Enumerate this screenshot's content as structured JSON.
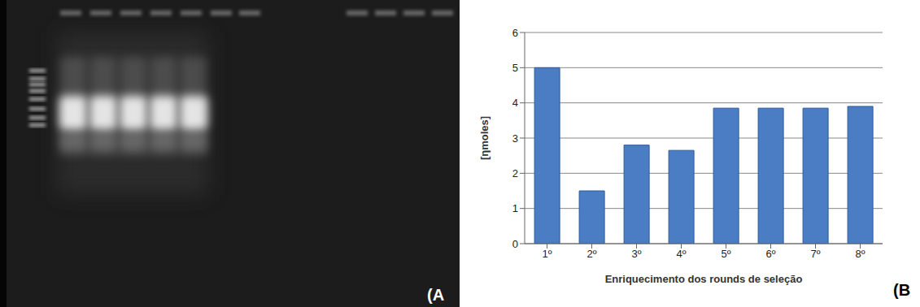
{
  "chart_data": {
    "type": "bar",
    "categories": [
      "1º",
      "2º",
      "3º",
      "4º",
      "5º",
      "6º",
      "7º",
      "8º"
    ],
    "values": [
      5,
      1.5,
      2.8,
      2.65,
      3.85,
      3.85,
      3.85,
      3.9
    ],
    "color": "#4a7dc4",
    "ylim": [
      0,
      6
    ],
    "yticks": [
      0,
      1,
      2,
      3,
      4,
      5,
      6
    ],
    "grid": true,
    "y_label": "[ηmoles]",
    "x_label": "Enriquecimento dos rounds de seleção"
  },
  "panel_labels": [
    "(A",
    "(B"
  ]
}
